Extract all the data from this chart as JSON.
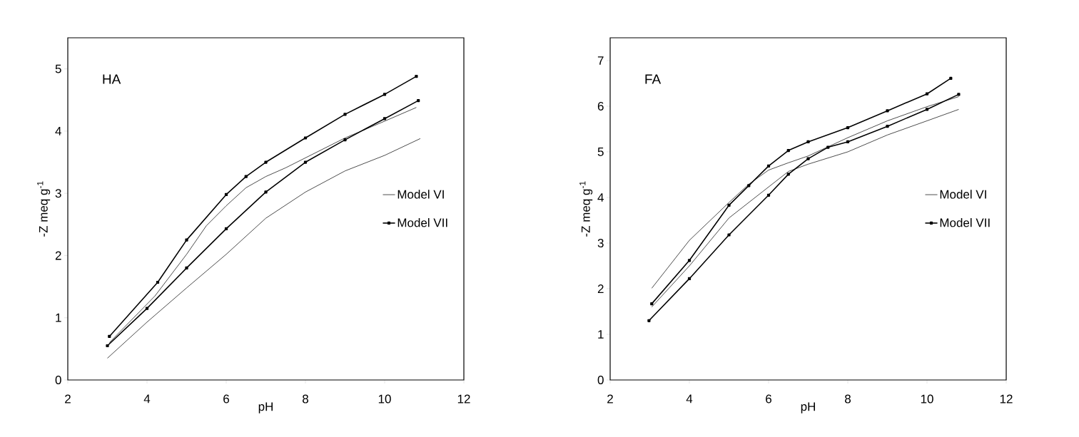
{
  "chart_data": [
    {
      "type": "line",
      "title": "HA",
      "xlabel": "pH",
      "ylabel": "-Z meq g$^{-1}$",
      "xlim": [
        2,
        12
      ],
      "xticks": [
        2,
        4,
        6,
        8,
        10,
        12
      ],
      "ylim": [
        0,
        5.5
      ],
      "yticks": [
        0,
        1,
        2,
        3,
        4,
        5
      ],
      "legend": "right",
      "grid": false,
      "series": [
        {
          "name": "Model VI",
          "color": "#000000",
          "marker": "none",
          "x": [
            3.05,
            4.2,
            5,
            5.5,
            6,
            6.5,
            7,
            7.5,
            8,
            9,
            10,
            10.8
          ],
          "values": [
            0.6,
            1.35,
            2.02,
            2.48,
            2.8,
            3.09,
            3.27,
            3.41,
            3.57,
            3.89,
            4.16,
            4.38
          ]
        },
        {
          "color": "#000000",
          "marker": "none",
          "x": [
            3.0,
            4,
            5,
            6,
            7,
            8,
            9,
            10,
            10.9
          ],
          "values": [
            0.35,
            0.93,
            1.48,
            2.02,
            2.6,
            3.02,
            3.36,
            3.61,
            3.88
          ]
        },
        {
          "name": "Model VII",
          "color": "#000000",
          "marker": "square",
          "x": [
            3.05,
            4.27,
            5,
            6,
            6.5,
            7,
            8,
            9,
            10,
            10.8
          ],
          "values": [
            0.7,
            1.57,
            2.25,
            2.98,
            3.27,
            3.5,
            3.89,
            4.27,
            4.59,
            4.88
          ]
        },
        {
          "color": "#000000",
          "marker": "square",
          "x": [
            3.0,
            4,
            5,
            6,
            7,
            8,
            9,
            10,
            10.85
          ],
          "values": [
            0.55,
            1.15,
            1.8,
            2.43,
            3.02,
            3.5,
            3.86,
            4.2,
            4.49
          ]
        }
      ]
    },
    {
      "type": "line",
      "title": "FA",
      "xlabel": "pH",
      "ylabel": "-Z meq g$^{-1}$",
      "xlim": [
        2,
        12
      ],
      "xticks": [
        2,
        4,
        6,
        8,
        10,
        12
      ],
      "ylim": [
        0,
        7.5
      ],
      "yticks": [
        0,
        1,
        2,
        3,
        4,
        5,
        6,
        7
      ],
      "legend": "right",
      "grid": false,
      "series": [
        {
          "name": "Model VI",
          "color": "#000000",
          "marker": "none",
          "x": [
            3.05,
            4,
            5,
            5.5,
            6,
            6.5,
            7,
            8,
            9,
            10,
            10.8
          ],
          "values": [
            2.01,
            3.06,
            3.89,
            4.29,
            4.6,
            4.76,
            4.91,
            5.31,
            5.68,
            5.99,
            6.21
          ]
        },
        {
          "color": "#000000",
          "marker": "none",
          "x": [
            3.05,
            4,
            5,
            6,
            6.5,
            7,
            8,
            9,
            10,
            10.8
          ],
          "values": [
            1.6,
            2.5,
            3.55,
            4.23,
            4.57,
            4.73,
            5.0,
            5.37,
            5.68,
            5.93
          ]
        },
        {
          "name": "Model VII",
          "color": "#000000",
          "marker": "square",
          "x": [
            3.05,
            4,
            5,
            5.5,
            6,
            6.5,
            7,
            8,
            9,
            10,
            10.6
          ],
          "values": [
            1.67,
            2.62,
            3.83,
            4.26,
            4.69,
            5.03,
            5.22,
            5.53,
            5.9,
            6.27,
            6.61
          ]
        },
        {
          "color": "#000000",
          "marker": "square",
          "x": [
            2.98,
            4,
            5,
            6,
            6.5,
            7,
            7.5,
            8,
            9,
            10,
            10.8
          ],
          "values": [
            1.3,
            2.22,
            3.18,
            4.05,
            4.51,
            4.85,
            5.1,
            5.22,
            5.56,
            5.93,
            6.26
          ]
        }
      ]
    }
  ]
}
